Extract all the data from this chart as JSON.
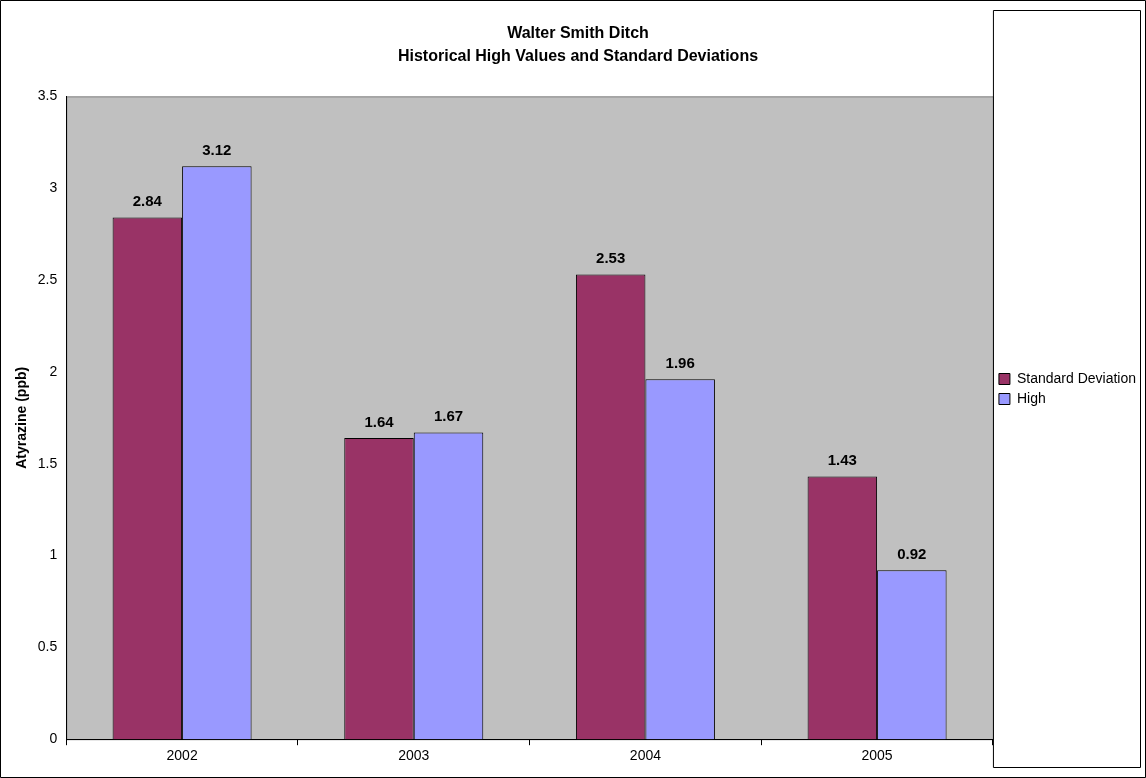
{
  "chart_data": {
    "type": "bar",
    "title": "Walter Smith Ditch",
    "subtitle": "Historical High Values and Standard Deviations",
    "ylabel": "Atyrazine (ppb)",
    "categories": [
      "2002",
      "2003",
      "2004",
      "2005"
    ],
    "series": [
      {
        "name": "Standard Deviation",
        "color": "#993366",
        "values": [
          2.84,
          1.64,
          2.53,
          1.43
        ]
      },
      {
        "name": "High",
        "color": "#9999ff",
        "values": [
          3.12,
          1.67,
          1.96,
          0.92
        ]
      }
    ],
    "ylim": [
      0,
      3.5
    ],
    "yticks": [
      0,
      0.5,
      1,
      1.5,
      2,
      2.5,
      3,
      3.5
    ],
    "grid": false,
    "legend": "right",
    "data_labels": true
  }
}
